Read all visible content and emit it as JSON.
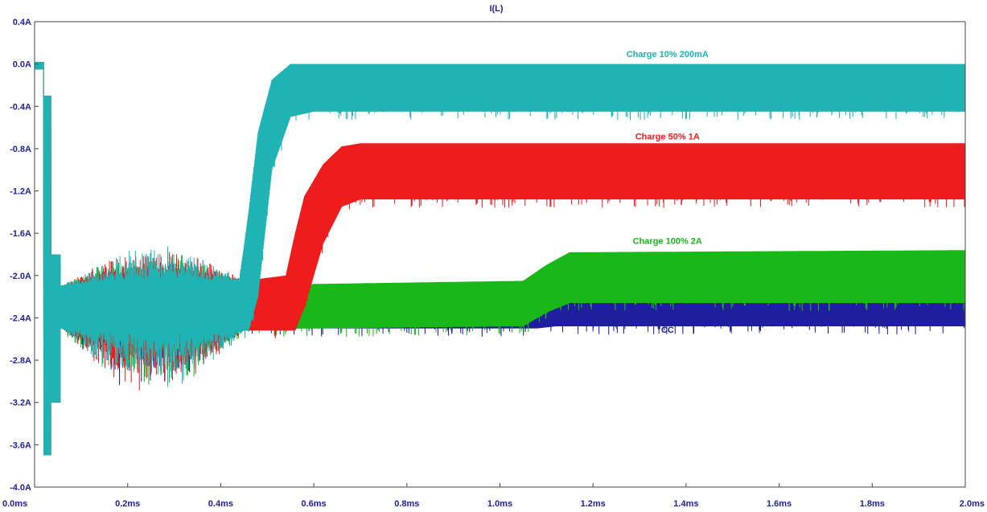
{
  "chart_data": {
    "type": "line",
    "title": "I(L)",
    "xlabel": "",
    "ylabel": "",
    "xlim": [
      0,
      2.0
    ],
    "ylim": [
      -4.0,
      0.4
    ],
    "x_ticks": [
      "0.0ms",
      "0.2ms",
      "0.4ms",
      "0.6ms",
      "0.8ms",
      "1.0ms",
      "1.2ms",
      "1.4ms",
      "1.6ms",
      "1.8ms",
      "2.0ms"
    ],
    "y_ticks": [
      "0.4A",
      "0.0A",
      "-0.4A",
      "-0.8A",
      "-1.2A",
      "-1.6A",
      "-2.0A",
      "-2.4A",
      "-2.8A",
      "-3.2A",
      "-3.6A",
      "-4.0A"
    ],
    "grid": false,
    "series": [
      {
        "name": "CC",
        "color": "#1f1f9e",
        "envelope": {
          "x": [
            0.0,
            1.05,
            1.08,
            1.12,
            2.0
          ],
          "high": [
            -2.3,
            -2.3,
            -2.28,
            -2.25,
            -2.25
          ],
          "low": [
            -2.5,
            -2.5,
            -2.5,
            -2.48,
            -2.48
          ]
        }
      },
      {
        "name": "Charge 100% 2A",
        "color": "#18b818",
        "envelope": {
          "x": [
            0.0,
            0.56,
            0.6,
            1.05,
            1.1,
            1.15,
            2.0
          ],
          "high": [
            -2.1,
            -2.1,
            -2.08,
            -2.05,
            -1.9,
            -1.78,
            -1.76
          ],
          "low": [
            -2.5,
            -2.5,
            -2.5,
            -2.48,
            -2.35,
            -2.26,
            -2.26
          ]
        }
      },
      {
        "name": "Charge 50% 1A",
        "color": "#ee1c1c",
        "envelope": {
          "x": [
            0.0,
            0.45,
            0.54,
            0.56,
            0.58,
            0.62,
            0.66,
            0.7,
            2.0
          ],
          "high": [
            -2.1,
            -2.05,
            -2.0,
            -1.6,
            -1.25,
            -0.95,
            -0.78,
            -0.75,
            -0.75
          ],
          "low": [
            -2.5,
            -2.52,
            -2.52,
            -2.52,
            -2.3,
            -1.7,
            -1.35,
            -1.28,
            -1.28
          ]
        }
      },
      {
        "name": "Charge 10% 200mA",
        "color": "#1fb3b3",
        "envelope": {
          "x": [
            0.0,
            0.44,
            0.46,
            0.48,
            0.51,
            0.55,
            0.6,
            2.0
          ],
          "high": [
            -2.1,
            -2.05,
            -1.4,
            -0.65,
            -0.15,
            0.0,
            0.0,
            0.0
          ],
          "low": [
            -2.5,
            -2.52,
            -2.52,
            -2.2,
            -1.0,
            -0.5,
            -0.45,
            -0.45
          ]
        }
      }
    ]
  }
}
